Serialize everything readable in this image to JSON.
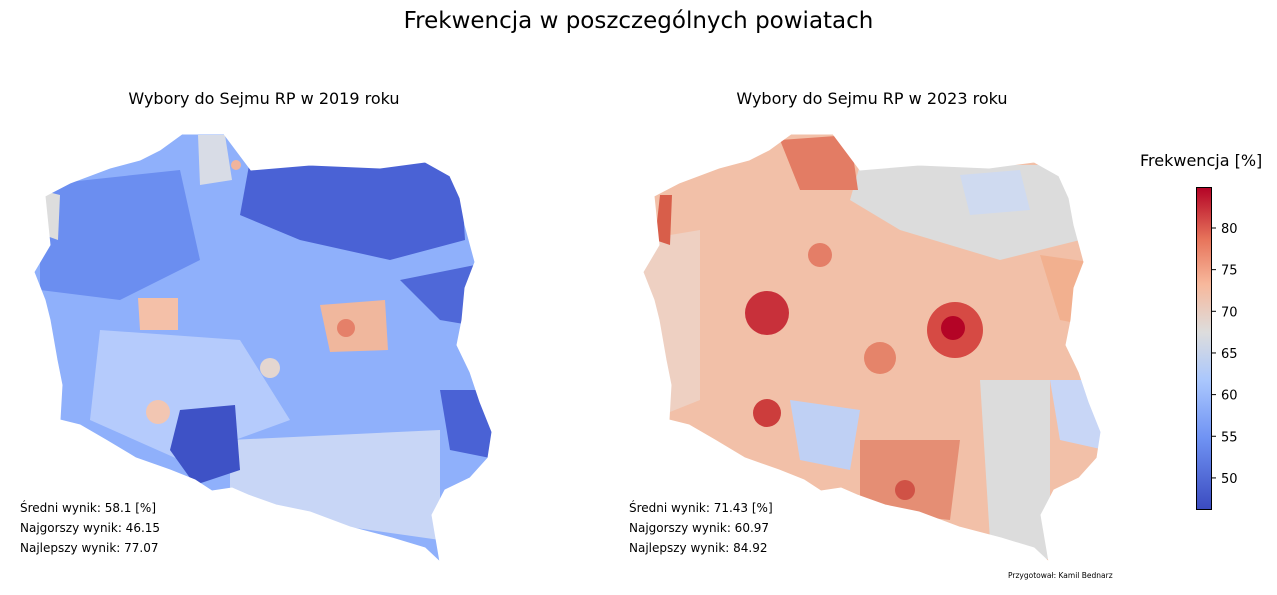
{
  "title": "Frekwencja w poszczególnych powiatach",
  "maps": [
    {
      "subtitle": "Wybory do Sejmu RP w 2019 roku",
      "stats": [
        "Średni wynik: 58.1 [%]",
        "Najgorszy wynik: 46.15",
        "Najlepszy wynik: 77.07"
      ]
    },
    {
      "subtitle": "Wybory do Sejmu RP w 2023 roku",
      "stats": [
        "Średni wynik: 71.43 [%]",
        "Najgorszy wynik: 60.97",
        "Najlepszy wynik: 84.92"
      ]
    }
  ],
  "credit": "Przygotował: Kamil Bednarz",
  "colorbar": {
    "label": "Frekwencja [%]",
    "ticks": [
      "80",
      "75",
      "70",
      "65",
      "60",
      "55",
      "50"
    ]
  },
  "chart_data": {
    "type": "heatmap",
    "title": "Frekwencja w poszczególnych powiatach",
    "colormap": [
      "#3b4cc0",
      "#dddddd",
      "#b40426"
    ],
    "vmin": 46.15,
    "vmax": 84.92,
    "series": [
      {
        "name": "Wybory do Sejmu RP w 2019 roku",
        "mean": 58.1,
        "min": 46.15,
        "max": 77.07
      },
      {
        "name": "Wybory do Sejmu RP w 2023 roku",
        "mean": 71.43,
        "min": 60.97,
        "max": 84.92
      }
    ],
    "colorbar_ticks": [
      50,
      55,
      60,
      65,
      70,
      75,
      80
    ]
  }
}
